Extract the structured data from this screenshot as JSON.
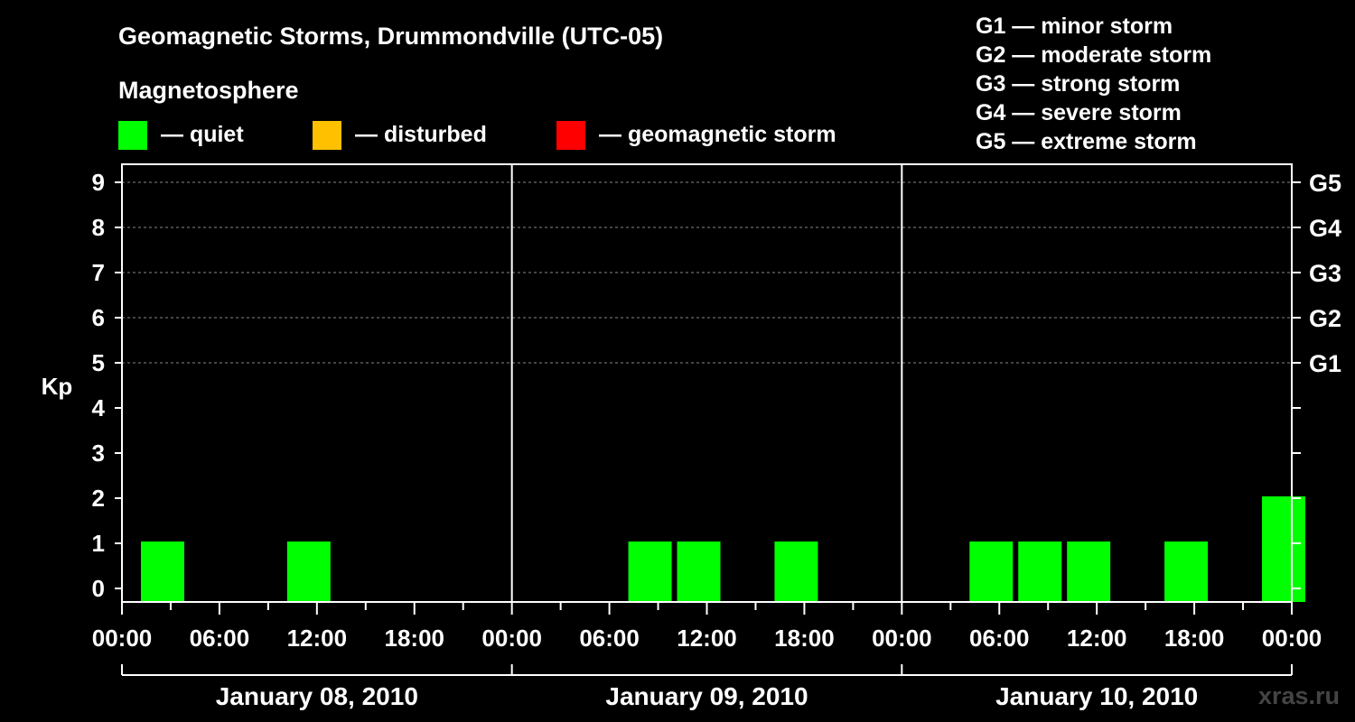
{
  "chart_data": {
    "type": "bar",
    "title": "Geomagnetic Storms, Drummondville (UTC-05)",
    "subtitle": "Magnetosphere",
    "ylabel": "Kp",
    "ylim": [
      0,
      9
    ],
    "yticks": [
      "0",
      "1",
      "2",
      "3",
      "4",
      "5",
      "6",
      "7",
      "8",
      "9"
    ],
    "right_ticks": [
      {
        "kp": 5,
        "label": "G1"
      },
      {
        "kp": 6,
        "label": "G2"
      },
      {
        "kp": 7,
        "label": "G3"
      },
      {
        "kp": 8,
        "label": "G4"
      },
      {
        "kp": 9,
        "label": "G5"
      }
    ],
    "xtick_labels": [
      "00:00",
      "06:00",
      "12:00",
      "18:00",
      "00:00",
      "06:00",
      "12:00",
      "18:00",
      "00:00",
      "06:00",
      "12:00",
      "18:00",
      "00:00"
    ],
    "days": [
      "January 08, 2010",
      "January 09, 2010",
      "January 10, 2010"
    ],
    "status_legend": [
      {
        "label": "— quiet",
        "color": "#00ff00"
      },
      {
        "label": "— disturbed",
        "color": "#ffc000"
      },
      {
        "label": "— geomagnetic storm",
        "color": "#ff0000"
      }
    ],
    "storm_scale": [
      "G1 — minor storm",
      "G2 — moderate storm",
      "G3 — strong storm",
      "G4 — severe storm",
      "G5 — extreme storm"
    ],
    "bar_color": "#00ff00",
    "bars": [
      {
        "start_hour": 1,
        "kp": 1
      },
      {
        "start_hour": 10,
        "kp": 1
      },
      {
        "start_hour": 31,
        "kp": 1
      },
      {
        "start_hour": 34,
        "kp": 1
      },
      {
        "start_hour": 40,
        "kp": 1
      },
      {
        "start_hour": 52,
        "kp": 1
      },
      {
        "start_hour": 55,
        "kp": 1
      },
      {
        "start_hour": 58,
        "kp": 1
      },
      {
        "start_hour": 64,
        "kp": 1
      },
      {
        "start_hour": 70,
        "kp": 2
      }
    ],
    "watermark": "xras.ru"
  }
}
